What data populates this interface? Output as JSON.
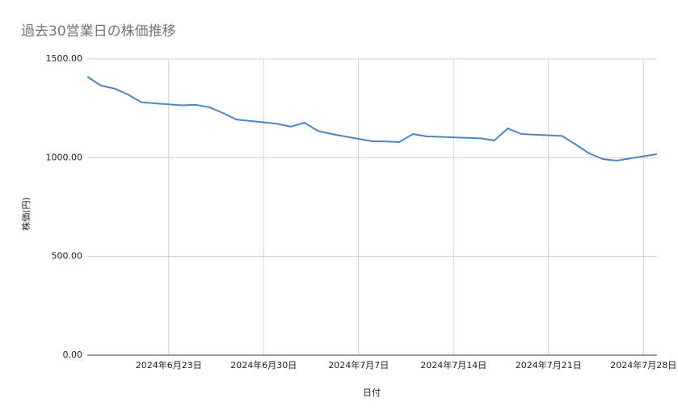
{
  "chart_data": {
    "type": "line",
    "title": "過去30営業日の株価推移",
    "x_label": "日付",
    "y_label": "株価(円)",
    "x": [
      "2024-06-17",
      "2024-06-18",
      "2024-06-19",
      "2024-06-20",
      "2024-06-21",
      "2024-06-24",
      "2024-06-25",
      "2024-06-26",
      "2024-06-27",
      "2024-06-28",
      "2024-07-01",
      "2024-07-02",
      "2024-07-03",
      "2024-07-04",
      "2024-07-05",
      "2024-07-08",
      "2024-07-09",
      "2024-07-10",
      "2024-07-11",
      "2024-07-12",
      "2024-07-16",
      "2024-07-17",
      "2024-07-18",
      "2024-07-19",
      "2024-07-22",
      "2024-07-23",
      "2024-07-24",
      "2024-07-25",
      "2024-07-26",
      "2024-07-29"
    ],
    "series": [
      {
        "name": "株価",
        "color": "#4a86c8",
        "values": [
          1410,
          1365,
          1350,
          1320,
          1280,
          1265,
          1268,
          1255,
          1226,
          1193,
          1172,
          1157,
          1177,
          1136,
          1120,
          1083,
          1082,
          1079,
          1120,
          1108,
          1098,
          1087,
          1148,
          1120,
          1110,
          1067,
          1022,
          993,
          985,
          1018
        ]
      }
    ],
    "xlim": [
      "2024-06-17",
      "2024-07-29"
    ],
    "xticks": [
      {
        "value": "2024-06-23",
        "label": "2024年6月23日"
      },
      {
        "value": "2024-06-30",
        "label": "2024年6月30日"
      },
      {
        "value": "2024-07-07",
        "label": "2024年7月7日"
      },
      {
        "value": "2024-07-14",
        "label": "2024年7月14日"
      },
      {
        "value": "2024-07-21",
        "label": "2024年7月21日"
      },
      {
        "value": "2024-07-28",
        "label": "2024年7月28日"
      }
    ],
    "ylim": [
      0,
      1500
    ],
    "yticks": [
      {
        "value": 0,
        "label": "0.00"
      },
      {
        "value": 500,
        "label": "500.00"
      },
      {
        "value": 1000,
        "label": "1000.00"
      },
      {
        "value": 1500,
        "label": "1500.00"
      }
    ],
    "grid": true
  }
}
